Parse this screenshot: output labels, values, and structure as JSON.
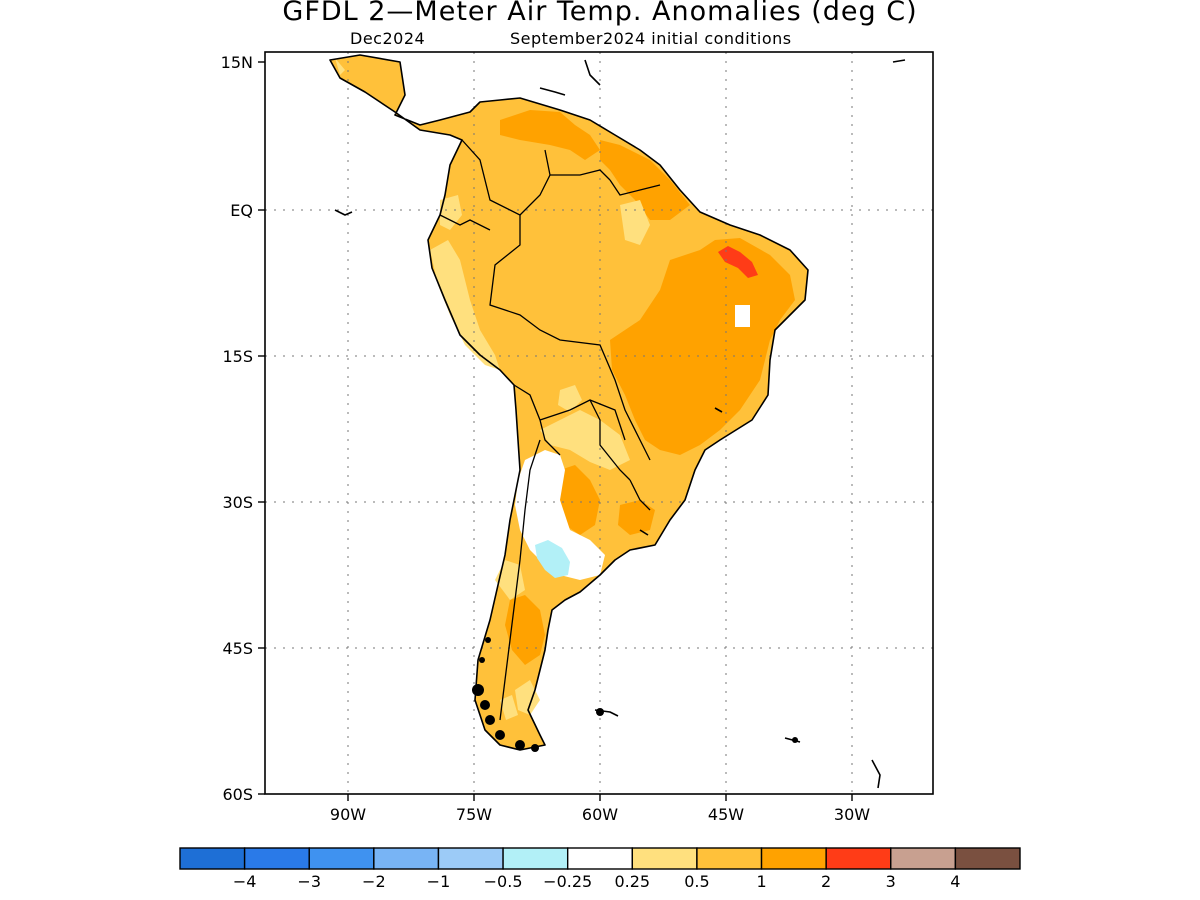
{
  "title": "GFDL 2—Meter Air Temp. Anomalies (deg C)",
  "subtitle_left": "Dec2024",
  "subtitle_right": "September2024 initial conditions",
  "lat_labels": [
    "15N",
    "EQ",
    "15S",
    "30S",
    "45S",
    "60S"
  ],
  "lon_labels": [
    "90W",
    "75W",
    "60W",
    "45W",
    "30W"
  ],
  "colorbar": {
    "colors": [
      "#1e6fd6",
      "#2a7ae8",
      "#3f92f0",
      "#78b4f5",
      "#9ccbf7",
      "#b2f0f7",
      "#ffffff",
      "#ffe07e",
      "#ffc13a",
      "#ffa200",
      "#ff3c17",
      "#c8a090",
      "#7a5040"
    ],
    "tick_labels": [
      "−4",
      "−3",
      "−2",
      "−1",
      "−0.5",
      "−0.25",
      "0.25",
      "0.5",
      "1",
      "2",
      "3",
      "4"
    ]
  },
  "legend": {
    "anomaly_classes": [
      {
        "range": "0.25 to 0.5",
        "color": "#ffe07e"
      },
      {
        "range": "0.5 to 1",
        "color": "#ffc13a"
      },
      {
        "range": "1 to 2",
        "color": "#ffa200"
      },
      {
        "range": "2 to 3",
        "color": "#ff3c17"
      },
      {
        "range": "-0.5 to -0.25",
        "color": "#b2f0f7"
      }
    ]
  }
}
